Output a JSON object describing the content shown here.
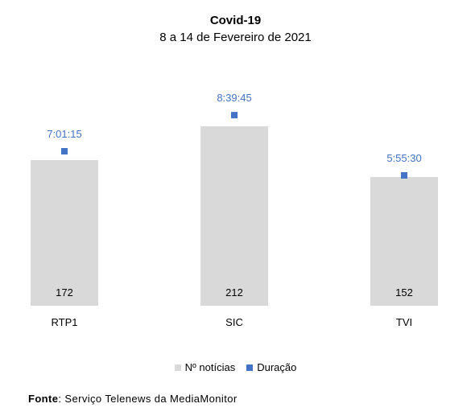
{
  "chart_data": {
    "type": "bar",
    "title": "Covid-19",
    "subtitle": "8 a 14 de Fevereiro de 2021",
    "categories": [
      "RTP1",
      "SIC",
      "TVI"
    ],
    "series": [
      {
        "name": "Nº notícias",
        "kind": "bar",
        "values": [
          172,
          212,
          152
        ],
        "color": "#d9d9d9"
      },
      {
        "name": "Duração",
        "kind": "marker",
        "values": [
          "7:01:15",
          "8:39:45",
          "5:55:30"
        ],
        "seconds": [
          25275,
          31185,
          21330
        ],
        "color": "#4472c4"
      }
    ],
    "legend_position": "bottom",
    "grid": false
  },
  "source": {
    "label": "Fonte",
    "text": ": Serviço Telenews da MediaMonitor"
  }
}
